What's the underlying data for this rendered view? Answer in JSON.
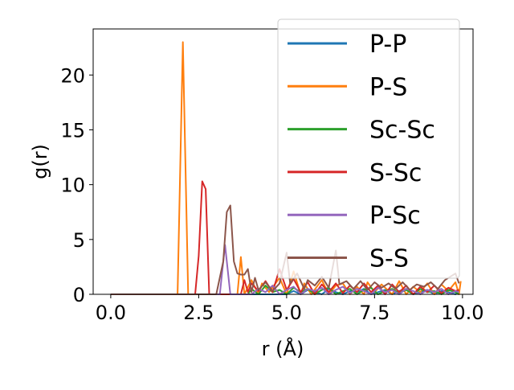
{
  "chart_data": {
    "type": "line",
    "title": "",
    "xlabel": "r (Å)",
    "ylabel": "g(r)",
    "xlim": [
      -0.5,
      10.3
    ],
    "ylim": [
      0,
      24.2
    ],
    "xticks": [
      0.0,
      2.5,
      5.0,
      7.5,
      10.0
    ],
    "xtick_labels": [
      "0.0",
      "2.5",
      "5.0",
      "7.5",
      "10.0"
    ],
    "yticks": [
      0,
      5,
      10,
      15,
      20
    ],
    "ytick_labels": [
      "0",
      "5",
      "10",
      "15",
      "20"
    ],
    "grid": false,
    "legend_position": "top-right",
    "series": [
      {
        "name": "P-P",
        "color": "#1f77b4",
        "x": [
          0,
          5.0,
          5.2,
          5.4,
          5.6,
          5.8,
          6.0,
          6.2,
          6.4,
          6.6,
          6.8,
          7.0,
          7.2,
          7.4,
          7.6,
          7.8,
          8.0,
          8.2,
          8.4,
          8.6,
          8.8,
          9.0,
          9.2,
          9.4,
          9.6,
          9.8,
          9.9
        ],
        "y": [
          0,
          0,
          0.3,
          0,
          0.4,
          0.2,
          0,
          0.5,
          0.2,
          0,
          0.3,
          0.2,
          0.5,
          0,
          0.2,
          0.4,
          0,
          0.3,
          0.5,
          0,
          0.2,
          0.4,
          0,
          0.3,
          0.2,
          0,
          0.2
        ]
      },
      {
        "name": "P-S",
        "color": "#ff7f0e",
        "x": [
          0,
          1.9,
          2.05,
          2.2,
          3.6,
          3.7,
          3.8,
          4.0,
          4.2,
          4.3,
          4.5,
          4.8,
          5.0,
          5.2,
          5.4,
          5.5,
          5.7,
          6.0,
          6.2,
          6.4,
          6.6,
          6.8,
          7.0,
          7.2,
          7.3,
          7.5,
          7.7,
          8.0,
          8.2,
          8.4,
          8.6,
          8.8,
          9.0,
          9.2,
          9.4,
          9.6,
          9.8,
          9.9,
          9.95
        ],
        "y": [
          0,
          0,
          23.0,
          0,
          0,
          3.4,
          0,
          1.3,
          0,
          1.0,
          0.2,
          1.5,
          0,
          2.1,
          0,
          1.0,
          0,
          1.3,
          0,
          0.8,
          1.0,
          0,
          0.7,
          0,
          1.1,
          0.2,
          0.9,
          0,
          1.2,
          0,
          0.7,
          0.2,
          1.0,
          0,
          0.9,
          0.3,
          1.1,
          0,
          1.2
        ]
      },
      {
        "name": "Sc-Sc",
        "color": "#2ca02c",
        "x": [
          0,
          3.9,
          4.0,
          4.2,
          4.4,
          4.6,
          4.8,
          5.0,
          5.2,
          5.4,
          5.6,
          5.8,
          6.0,
          6.2,
          6.4,
          6.6,
          6.8,
          7.0,
          7.2,
          7.4,
          7.6,
          7.8,
          8.0,
          8.2,
          8.4,
          8.6,
          8.8,
          9.0,
          9.2,
          9.4,
          9.6,
          9.8,
          9.9
        ],
        "y": [
          0,
          0,
          0.5,
          0,
          0.8,
          0.2,
          0.4,
          0,
          0.6,
          0.2,
          0.5,
          0,
          0.4,
          0.6,
          0,
          0.3,
          0.5,
          0,
          0.4,
          0.6,
          0,
          0.3,
          0.5,
          0.1,
          0.4,
          0,
          0.5,
          0.2,
          0.3,
          0,
          0.4,
          0.2,
          0
        ]
      },
      {
        "name": "S-Sc",
        "color": "#d62728",
        "x": [
          0,
          2.4,
          2.5,
          2.6,
          2.7,
          2.8,
          2.9,
          3.7,
          3.8,
          3.9,
          4.0,
          4.2,
          4.4,
          4.6,
          4.8,
          5.0,
          5.2,
          5.4,
          5.6,
          5.8,
          6.0,
          6.2,
          6.4,
          6.6,
          6.8,
          7.0,
          7.2,
          7.4,
          7.6,
          7.8,
          8.0,
          8.2,
          8.4,
          8.6,
          8.8,
          9.0,
          9.2,
          9.4,
          9.6,
          9.8,
          9.9
        ],
        "y": [
          0,
          0,
          3.5,
          10.3,
          9.6,
          0,
          0,
          0,
          1.3,
          0.2,
          1.0,
          0.3,
          1.2,
          0.2,
          2.3,
          0.4,
          1.4,
          0.2,
          1.1,
          0,
          0.9,
          0.2,
          1.0,
          0.1,
          0.8,
          0.2,
          1.0,
          0.2,
          0.8,
          0,
          0.9,
          0.2,
          0.8,
          0,
          0.7,
          0.2,
          0.8,
          0.1,
          0.6,
          0.3,
          0.4
        ]
      },
      {
        "name": "P-Sc",
        "color": "#9467bd",
        "x": [
          0,
          3.1,
          3.25,
          3.4,
          4.0,
          4.2,
          4.4,
          4.6,
          4.8,
          5.0,
          5.2,
          5.4,
          5.6,
          5.8,
          6.0,
          6.2,
          6.4,
          6.6,
          6.8,
          7.0,
          7.2,
          7.4,
          7.6,
          7.8,
          8.0,
          8.2,
          8.4,
          8.6,
          8.8,
          9.0,
          9.2,
          9.4,
          9.6,
          9.8,
          9.9
        ],
        "y": [
          0,
          0,
          4.5,
          0,
          0,
          0.5,
          0.2,
          0.8,
          0,
          0.4,
          0.7,
          0,
          0.5,
          0.3,
          0.6,
          0,
          0.4,
          0.7,
          0.1,
          0.5,
          0.3,
          0,
          0.6,
          0.2,
          0.4,
          0,
          0.5,
          0.3,
          0,
          0.4,
          0.2,
          0.5,
          0,
          0.3,
          0.2
        ]
      },
      {
        "name": "S-S",
        "color": "#8c564b",
        "x": [
          0,
          3.0,
          3.2,
          3.3,
          3.4,
          3.5,
          3.6,
          3.7,
          3.8,
          3.9,
          4.0,
          4.1,
          4.2,
          4.4,
          4.6,
          4.8,
          5.0,
          5.1,
          5.3,
          5.5,
          5.6,
          5.8,
          6.0,
          6.2,
          6.4,
          6.5,
          6.7,
          6.9,
          7.1,
          7.3,
          7.5,
          7.7,
          7.9,
          8.1,
          8.3,
          8.5,
          8.7,
          8.9,
          9.1,
          9.3,
          9.5,
          9.7,
          9.8,
          9.9
        ],
        "y": [
          0,
          0,
          3.0,
          7.5,
          8.1,
          3.0,
          1.9,
          1.8,
          1.8,
          2.3,
          0.2,
          1.5,
          0.4,
          1.1,
          0.3,
          1.0,
          3.8,
          1.0,
          1.9,
          0.5,
          1.3,
          0.8,
          1.6,
          0.6,
          4.0,
          0.9,
          1.2,
          0.5,
          1.2,
          0.4,
          1.1,
          0.6,
          1.0,
          0.5,
          1.1,
          0.4,
          0.9,
          0.7,
          1.1,
          0.5,
          1.3,
          1.7,
          1.9,
          1.0
        ]
      }
    ]
  }
}
